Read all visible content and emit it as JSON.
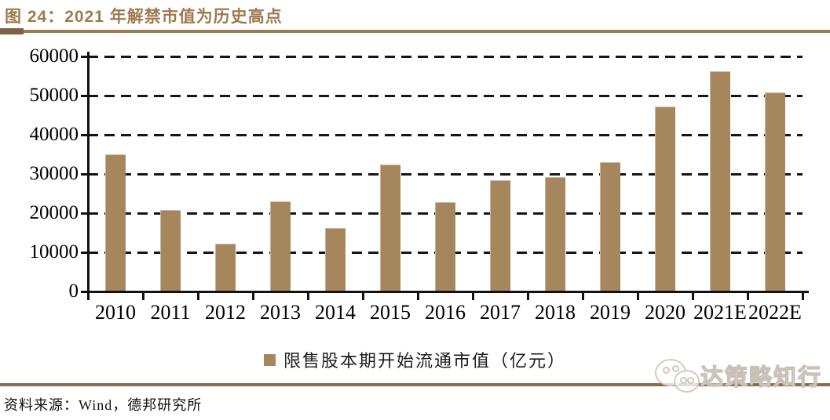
{
  "figure": {
    "title": "图 24：2021 年解禁市值为历史高点",
    "source": "资料来源：Wind，德邦研究所"
  },
  "watermark": {
    "icon": "wechat-icon",
    "text": "达策略知行"
  },
  "colors": {
    "title_brown": "#9E7A4D",
    "bar_brown": "#A6875D",
    "header_rule": "#9C7C57",
    "header_rule_cap": "#7E6144",
    "footer_rule": "#8B6A4E",
    "gridline": "#151515",
    "axis": "#111111"
  },
  "chart_data": {
    "type": "bar",
    "title": "2021 年解禁市值为历史高点",
    "legend": "限售股本期开始流通市值（亿元）",
    "legend_position": "bottom center",
    "categories": [
      "2010",
      "2011",
      "2012",
      "2013",
      "2014",
      "2015",
      "2016",
      "2017",
      "2018",
      "2019",
      "2020",
      "2021E",
      "2022E"
    ],
    "values": [
      35100,
      20800,
      12200,
      23000,
      16200,
      32500,
      22900,
      28400,
      29300,
      33100,
      47300,
      56200,
      50800
    ],
    "xlabel": "",
    "ylabel": "",
    "ylim": [
      0,
      60000
    ],
    "yticks": [
      0,
      10000,
      20000,
      30000,
      40000,
      50000,
      60000
    ],
    "grid": "horizontal dashed"
  }
}
